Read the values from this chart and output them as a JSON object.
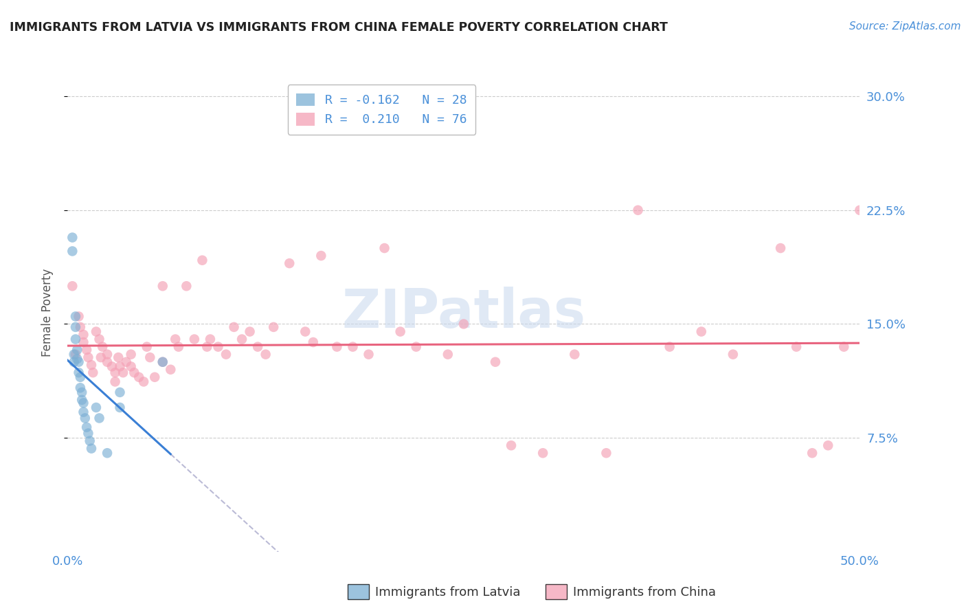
{
  "title": "IMMIGRANTS FROM LATVIA VS IMMIGRANTS FROM CHINA FEMALE POVERTY CORRELATION CHART",
  "source": "Source: ZipAtlas.com",
  "ylabel": "Female Poverty",
  "latvia_color": "#7bafd4",
  "china_color": "#f4a0b5",
  "latvia_line_color": "#3a7fd5",
  "china_line_color": "#e8637e",
  "latvia_dash_color": "#aaaacc",
  "watermark_color": "#c8d8ee",
  "xlim": [
    0.0,
    0.5
  ],
  "ylim": [
    0.0,
    0.315
  ],
  "y_ticks": [
    0.075,
    0.15,
    0.225,
    0.3
  ],
  "y_tick_labels": [
    "7.5%",
    "15.0%",
    "22.5%",
    "30.0%"
  ],
  "x_ticks": [
    0.0,
    0.5
  ],
  "x_tick_labels": [
    "0.0%",
    "50.0%"
  ],
  "latvia_x": [
    0.003,
    0.003,
    0.004,
    0.004,
    0.005,
    0.005,
    0.005,
    0.006,
    0.006,
    0.007,
    0.007,
    0.008,
    0.008,
    0.009,
    0.009,
    0.01,
    0.01,
    0.011,
    0.012,
    0.013,
    0.014,
    0.015,
    0.018,
    0.02,
    0.025,
    0.033,
    0.033,
    0.06
  ],
  "latvia_y": [
    0.207,
    0.198,
    0.13,
    0.125,
    0.155,
    0.148,
    0.14,
    0.133,
    0.127,
    0.125,
    0.118,
    0.115,
    0.108,
    0.105,
    0.1,
    0.098,
    0.092,
    0.088,
    0.082,
    0.078,
    0.073,
    0.068,
    0.095,
    0.088,
    0.065,
    0.095,
    0.105,
    0.125
  ],
  "china_x": [
    0.003,
    0.005,
    0.007,
    0.008,
    0.01,
    0.01,
    0.012,
    0.013,
    0.015,
    0.016,
    0.018,
    0.02,
    0.021,
    0.022,
    0.025,
    0.025,
    0.028,
    0.03,
    0.03,
    0.032,
    0.033,
    0.035,
    0.037,
    0.04,
    0.04,
    0.042,
    0.045,
    0.048,
    0.05,
    0.052,
    0.055,
    0.06,
    0.06,
    0.065,
    0.068,
    0.07,
    0.075,
    0.08,
    0.085,
    0.088,
    0.09,
    0.095,
    0.1,
    0.105,
    0.11,
    0.115,
    0.12,
    0.125,
    0.13,
    0.14,
    0.15,
    0.155,
    0.16,
    0.17,
    0.18,
    0.19,
    0.2,
    0.21,
    0.22,
    0.24,
    0.25,
    0.27,
    0.28,
    0.3,
    0.32,
    0.34,
    0.36,
    0.38,
    0.4,
    0.42,
    0.45,
    0.46,
    0.47,
    0.48,
    0.49,
    0.5
  ],
  "china_y": [
    0.175,
    0.13,
    0.155,
    0.148,
    0.143,
    0.138,
    0.133,
    0.128,
    0.123,
    0.118,
    0.145,
    0.14,
    0.128,
    0.135,
    0.13,
    0.125,
    0.122,
    0.118,
    0.112,
    0.128,
    0.122,
    0.118,
    0.125,
    0.13,
    0.122,
    0.118,
    0.115,
    0.112,
    0.135,
    0.128,
    0.115,
    0.175,
    0.125,
    0.12,
    0.14,
    0.135,
    0.175,
    0.14,
    0.192,
    0.135,
    0.14,
    0.135,
    0.13,
    0.148,
    0.14,
    0.145,
    0.135,
    0.13,
    0.148,
    0.19,
    0.145,
    0.138,
    0.195,
    0.135,
    0.135,
    0.13,
    0.2,
    0.145,
    0.135,
    0.13,
    0.15,
    0.125,
    0.07,
    0.065,
    0.13,
    0.065,
    0.225,
    0.135,
    0.145,
    0.13,
    0.2,
    0.135,
    0.065,
    0.07,
    0.135,
    0.225
  ],
  "legend1_text": "R = -0.162   N = 28",
  "legend2_text": "R =  0.210   N = 76",
  "legend1_label": "Immigrants from Latvia",
  "legend2_label": "Immigrants from China"
}
